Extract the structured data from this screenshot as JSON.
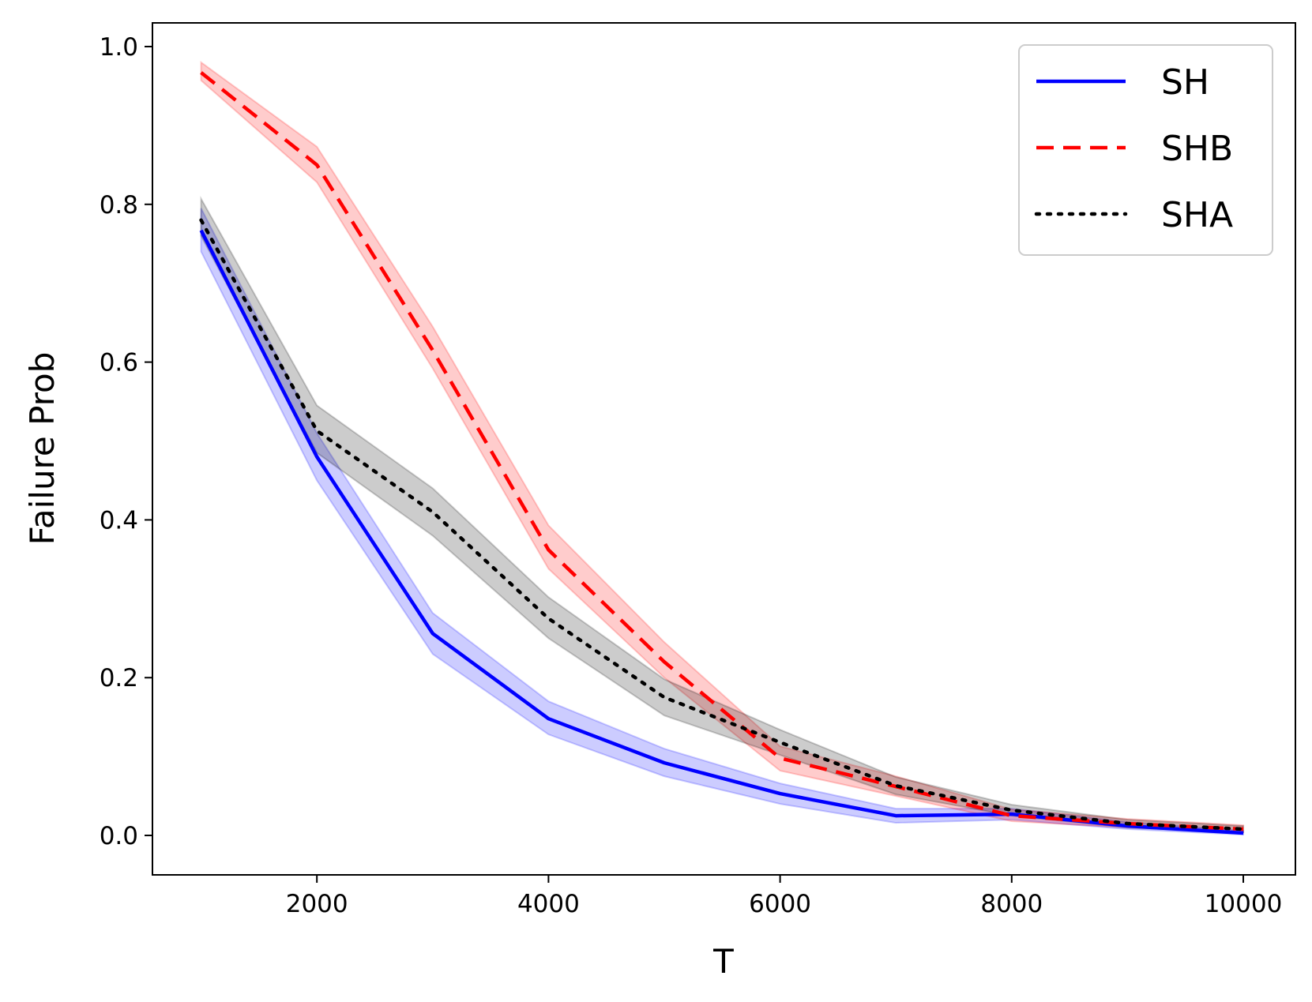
{
  "chart_data": {
    "type": "line",
    "xlabel": "T",
    "ylabel": "Failure Prob",
    "xlim": [
      580,
      10450
    ],
    "ylim": [
      -0.05,
      1.03
    ],
    "xticks": [
      2000,
      4000,
      6000,
      8000,
      10000
    ],
    "yticks": [
      0.0,
      0.2,
      0.4,
      0.6,
      0.8,
      1.0
    ],
    "xtick_labels": [
      "2000",
      "4000",
      "6000",
      "8000",
      "10000"
    ],
    "ytick_labels": [
      "0.0",
      "0.2",
      "0.4",
      "0.6",
      "0.8",
      "1.0"
    ],
    "grid": false,
    "legend_position": "top-right",
    "x": [
      1000,
      2000,
      3000,
      4000,
      5000,
      6000,
      7000,
      8000,
      9000,
      10000
    ],
    "series": [
      {
        "name": "SH",
        "color": "#0000ff",
        "style": "solid",
        "values": [
          0.767,
          0.48,
          0.256,
          0.148,
          0.092,
          0.053,
          0.025,
          0.027,
          0.012,
          0.003
        ],
        "lower": [
          0.74,
          0.45,
          0.23,
          0.128,
          0.075,
          0.04,
          0.016,
          0.02,
          0.008,
          0.001
        ],
        "upper": [
          0.795,
          0.51,
          0.282,
          0.17,
          0.11,
          0.066,
          0.034,
          0.034,
          0.017,
          0.006
        ]
      },
      {
        "name": "SHB",
        "color": "#ff0000",
        "style": "dashed",
        "values": [
          0.967,
          0.85,
          0.615,
          0.362,
          0.22,
          0.098,
          0.062,
          0.025,
          0.015,
          0.008
        ],
        "lower": [
          0.957,
          0.828,
          0.592,
          0.338,
          0.2,
          0.082,
          0.05,
          0.018,
          0.01,
          0.004
        ],
        "upper": [
          0.98,
          0.873,
          0.645,
          0.393,
          0.245,
          0.113,
          0.075,
          0.033,
          0.021,
          0.013
        ]
      },
      {
        "name": "SHA",
        "color": "#000000",
        "style": "dotted",
        "values": [
          0.78,
          0.513,
          0.41,
          0.275,
          0.175,
          0.118,
          0.063,
          0.032,
          0.015,
          0.008
        ],
        "lower": [
          0.76,
          0.485,
          0.38,
          0.25,
          0.152,
          0.102,
          0.052,
          0.025,
          0.01,
          0.004
        ],
        "upper": [
          0.807,
          0.545,
          0.44,
          0.302,
          0.198,
          0.134,
          0.074,
          0.039,
          0.02,
          0.012
        ]
      }
    ]
  }
}
